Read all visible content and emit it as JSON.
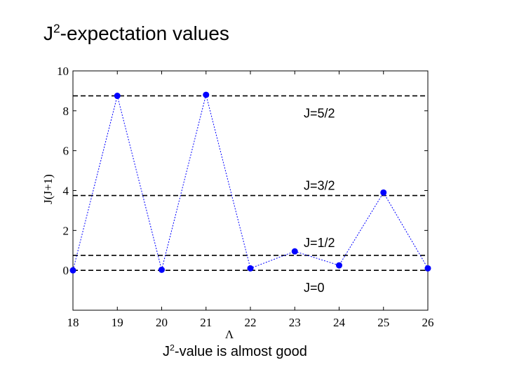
{
  "slide": {
    "title_main": "J",
    "title_sup": "2",
    "title_rest": "-expectation values",
    "caption_main": "J",
    "caption_sup": "2",
    "caption_rest": "-value is almost good"
  },
  "chart_data": {
    "type": "line",
    "title": "",
    "xlabel": "Λ",
    "ylabel": "J(J+1)",
    "xlim": [
      18,
      26
    ],
    "ylim": [
      -2,
      10
    ],
    "xticks": [
      "18",
      "19",
      "20",
      "21",
      "22",
      "23",
      "24",
      "25",
      "26"
    ],
    "yticks": [
      "0",
      "2",
      "4",
      "6",
      "8",
      "10"
    ],
    "grid": false,
    "series": [
      {
        "x": [
          18,
          19,
          20,
          21,
          22,
          23,
          24,
          25,
          26
        ],
        "y": [
          0.0,
          8.75,
          0.03,
          8.8,
          0.1,
          0.95,
          0.25,
          3.9,
          0.1
        ],
        "color": "#0000ff",
        "line_style": "dotted",
        "marker": "circle"
      }
    ],
    "reference_lines": [
      {
        "y": 8.75,
        "label": "J=5/2"
      },
      {
        "y": 3.75,
        "label": "J=3/2"
      },
      {
        "y": 0.75,
        "label": "J=1/2"
      },
      {
        "y": 0.0,
        "label": "J=0"
      }
    ]
  }
}
